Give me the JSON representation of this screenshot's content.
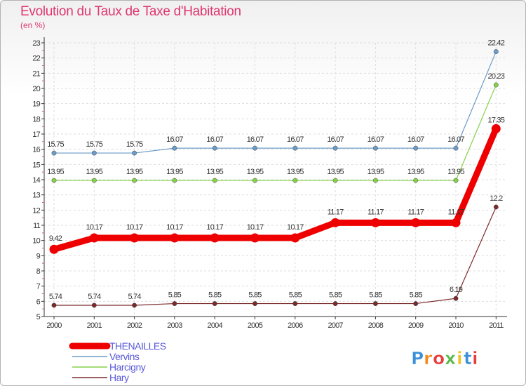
{
  "chart_data": {
    "type": "line",
    "title": "Evolution du Taux de Taxe d'Habitation",
    "subtitle": "(en %)",
    "x": [
      "2000",
      "2001",
      "2002",
      "2003",
      "2004",
      "2005",
      "2006",
      "2007",
      "2008",
      "2009",
      "2010",
      "2011"
    ],
    "ylim": [
      5,
      23
    ],
    "yticks": [
      5,
      6,
      7,
      8,
      9,
      10,
      11,
      12,
      13,
      14,
      15,
      16,
      17,
      18,
      19,
      20,
      21,
      22,
      23
    ],
    "series": [
      {
        "name": "THENAILLES",
        "color": "#ee0000",
        "values": [
          9.42,
          10.17,
          10.17,
          10.17,
          10.17,
          10.17,
          10.17,
          11.17,
          11.17,
          11.17,
          11.17,
          17.35
        ],
        "labels": [
          "9.42",
          "10.17",
          "10.17",
          "10.17",
          "10.17",
          "10.17",
          "10.17",
          "11.17",
          "11.17",
          "11.17",
          "11.17",
          "17.35"
        ]
      },
      {
        "name": "Vervins",
        "color": "#6b9bc7",
        "values": [
          15.75,
          15.75,
          15.75,
          16.07,
          16.07,
          16.07,
          16.07,
          16.07,
          16.07,
          16.07,
          16.07,
          22.42
        ],
        "labels": [
          "15.75",
          "15.75",
          "15.75",
          "16.07",
          "16.07",
          "16.07",
          "16.07",
          "16.07",
          "16.07",
          "16.07",
          "16.07",
          "22.42"
        ]
      },
      {
        "name": "Harcigny",
        "color": "#86d04a",
        "values": [
          13.95,
          13.95,
          13.95,
          13.95,
          13.95,
          13.95,
          13.95,
          13.95,
          13.95,
          13.95,
          13.95,
          20.23
        ],
        "labels": [
          "13.95",
          "13.95",
          "13.95",
          "13.95",
          "13.95",
          "13.95",
          "13.95",
          "13.95",
          "13.95",
          "13.95",
          "13.95",
          "20.23"
        ]
      },
      {
        "name": "Hary",
        "color": "#7a2a2a",
        "values": [
          5.74,
          5.74,
          5.74,
          5.85,
          5.85,
          5.85,
          5.85,
          5.85,
          5.85,
          5.85,
          6.19,
          12.2
        ],
        "labels": [
          "5.74",
          "5.74",
          "5.74",
          "5.85",
          "5.85",
          "5.85",
          "5.85",
          "5.85",
          "5.85",
          "5.85",
          "6.19",
          "12.2"
        ]
      }
    ],
    "legend": [
      "THENAILLES",
      "Vervins",
      "Harcigny",
      "Hary"
    ]
  },
  "logo": {
    "letters": [
      "P",
      "r",
      "o",
      "x",
      "i",
      "t",
      "i"
    ],
    "colors": [
      "#3b8fd8",
      "#f28a1e",
      "#e83b3b",
      "#58b848",
      "#f2c21e",
      "#3b8fd8",
      "#e83b3b"
    ]
  }
}
